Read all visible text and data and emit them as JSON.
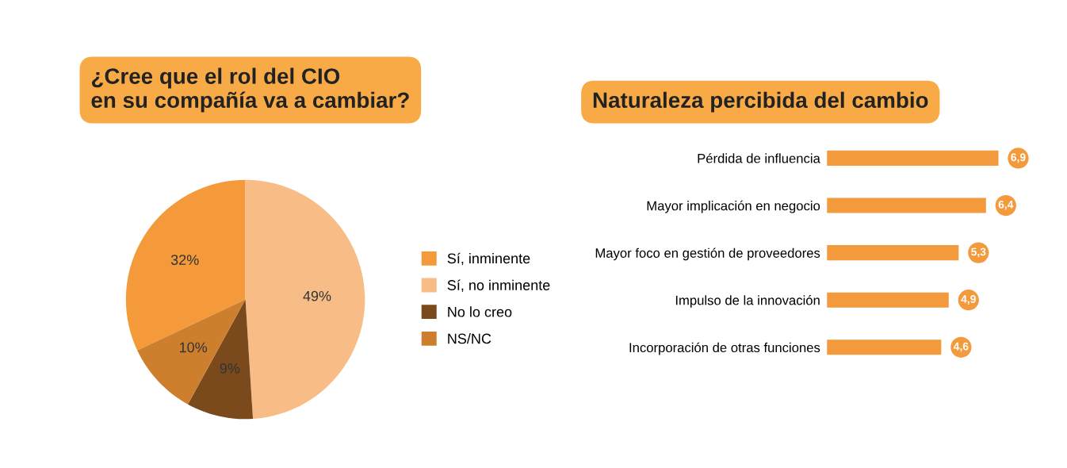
{
  "chart_data": [
    {
      "type": "pie",
      "title": "¿Cree que el rol del CIO\nen su compañía va a cambiar?",
      "categories": [
        "Sí, inminente",
        "Sí, no inminente",
        "No lo creo",
        "NS/NC"
      ],
      "values": [
        32,
        49,
        9,
        10
      ],
      "value_labels": [
        "32%",
        "49%",
        "9%",
        "10%"
      ],
      "colors": [
        "#f59a3a",
        "#f8bd86",
        "#7b4a1c",
        "#cd7f2e"
      ],
      "legend": "right"
    },
    {
      "type": "bar",
      "orientation": "horizontal",
      "title": "Naturaleza percibida del cambio",
      "categories": [
        "Pérdida de influencia",
        "Mayor implicación en negocio",
        "Mayor foco en gestión de proveedores",
        "Impulso de la innovación",
        "Incorporación de otras funciones"
      ],
      "values": [
        6.9,
        6.4,
        5.3,
        4.9,
        4.6
      ],
      "value_labels": [
        "6,9",
        "6,4",
        "5,3",
        "4,9",
        "4,6"
      ],
      "color": "#f39a3c"
    }
  ]
}
